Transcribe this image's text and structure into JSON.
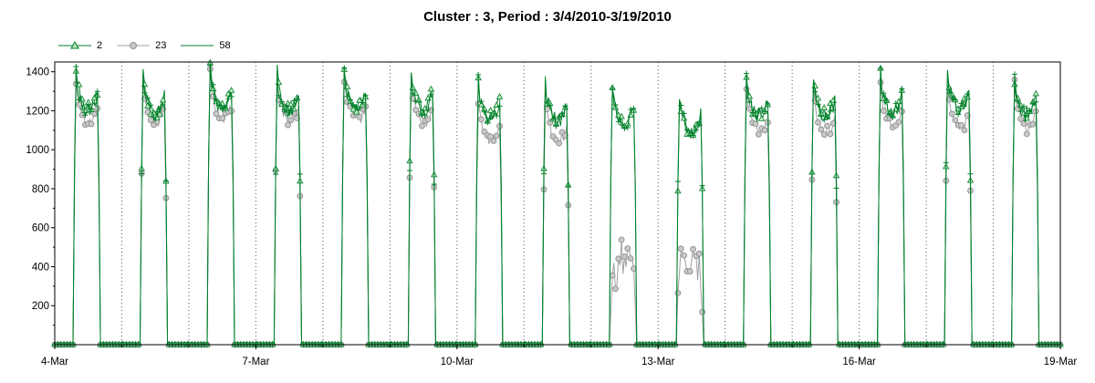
{
  "chart_data": {
    "type": "line",
    "title": "Cluster : 3, Period : 3/4/2010-3/19/2010",
    "xlabel": "",
    "ylabel": "",
    "x_range_days": [
      "2010-03-04",
      "2010-03-19"
    ],
    "ylim": [
      0,
      1450
    ],
    "y_ticks": [
      200,
      400,
      600,
      800,
      1000,
      1200,
      1400
    ],
    "x_ticks": [
      "4-Mar",
      "7-Mar",
      "10-Mar",
      "13-Mar",
      "16-Mar",
      "19-Mar"
    ],
    "x_tick_dates": [
      "2010-03-04",
      "2010-03-07",
      "2010-03-10",
      "2010-03-13",
      "2010-03-16",
      "2010-03-19"
    ],
    "grid": "dotted vertical lines at day boundaries",
    "legend_position": "top-left",
    "series": [
      {
        "name": "2",
        "color": "#00802b",
        "marker": "triangle",
        "daily_peaks": [
          1420,
          1390,
          1430,
          1410,
          1420,
          1420,
          1370,
          1350,
          1330,
          1270,
          1370,
          1380,
          1390,
          1420,
          1370
        ]
      },
      {
        "name": "23",
        "color": "#a0a0a0",
        "marker": "circle",
        "daily_peaks": [
          1380,
          1370,
          1400,
          1380,
          1390,
          1370,
          1270,
          1270,
          470,
          520,
          1320,
          1320,
          1350,
          1350,
          1340
        ]
      },
      {
        "name": "58",
        "color": "#00802b",
        "marker": "plus",
        "daily_peaks": [
          1400,
          1380,
          1420,
          1400,
          1410,
          1400,
          1360,
          1340,
          1330,
          1290,
          1380,
          1370,
          1400,
          1410,
          1380
        ]
      }
    ]
  }
}
